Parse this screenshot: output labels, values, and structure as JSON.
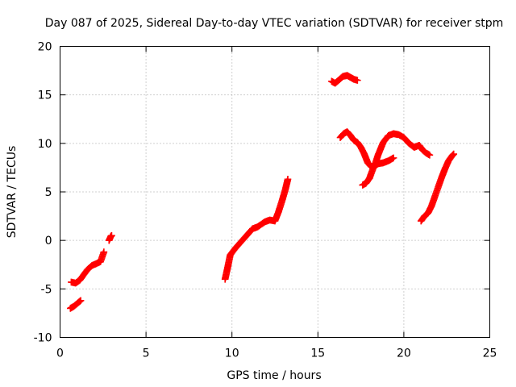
{
  "chart_data": {
    "type": "scatter",
    "title": "Day 087 of 2025, Sidereal Day-to-day VTEC variation (SDTVAR) for receiver stpm",
    "xlabel": "GPS time / hours",
    "ylabel": "SDTVAR / TECUs",
    "xlim": [
      0,
      25
    ],
    "ylim": [
      -10,
      20
    ],
    "xticks": [
      0,
      5,
      10,
      15,
      20,
      25
    ],
    "yticks": [
      -10,
      -5,
      0,
      5,
      10,
      15,
      20
    ],
    "grid": true,
    "marker": "+",
    "color": "#ff0000",
    "series": [
      {
        "name": "seg-1",
        "x": [
          0.65,
          0.9,
          1.15,
          1.35,
          1.6,
          1.85,
          2.1,
          2.35,
          2.55
        ],
        "y": [
          -4.3,
          -4.4,
          -4.1,
          -3.6,
          -3.0,
          -2.6,
          -2.4,
          -2.2,
          -1.2
        ]
      },
      {
        "name": "seg-2",
        "x": [
          0.6,
          0.8,
          1.0,
          1.2
        ],
        "y": [
          -7.0,
          -6.8,
          -6.5,
          -6.2
        ]
      },
      {
        "name": "seg-3",
        "x": [
          2.85,
          2.95,
          3.0
        ],
        "y": [
          0.0,
          0.4,
          0.5
        ]
      },
      {
        "name": "seg-4",
        "x": [
          9.6,
          9.75,
          9.9,
          10.2,
          10.5,
          10.9,
          11.2,
          11.5,
          11.9,
          12.2,
          12.5,
          12.7,
          12.9,
          13.1,
          13.25
        ],
        "y": [
          -4.0,
          -2.8,
          -1.5,
          -0.8,
          -0.2,
          0.6,
          1.2,
          1.4,
          1.9,
          2.1,
          2.0,
          2.9,
          4.0,
          5.2,
          6.3
        ]
      },
      {
        "name": "seg-5",
        "x": [
          15.8,
          16.0,
          16.2,
          16.45,
          16.7,
          16.9,
          17.1,
          17.3
        ],
        "y": [
          16.4,
          16.2,
          16.5,
          16.9,
          17.0,
          16.8,
          16.6,
          16.5
        ]
      },
      {
        "name": "seg-6",
        "x": [
          16.3,
          16.5,
          16.7,
          16.9,
          17.1,
          17.3,
          17.5,
          17.7,
          17.9,
          18.1,
          18.3,
          18.5,
          18.8,
          19.1,
          19.4,
          19.7,
          20.0,
          20.3,
          20.6,
          20.9,
          21.1,
          21.3,
          21.5
        ],
        "y": [
          10.6,
          11.0,
          11.2,
          10.8,
          10.3,
          10.1,
          9.6,
          8.9,
          8.0,
          7.6,
          7.7,
          8.8,
          10.1,
          10.8,
          11.0,
          10.9,
          10.6,
          10.0,
          9.6,
          9.8,
          9.3,
          9.0,
          8.8
        ]
      },
      {
        "name": "seg-7",
        "x": [
          17.6,
          17.8,
          18.0,
          18.25,
          18.5,
          18.8,
          19.1,
          19.4
        ],
        "y": [
          5.7,
          5.9,
          6.4,
          7.6,
          7.9,
          8.0,
          8.2,
          8.5
        ]
      },
      {
        "name": "seg-8",
        "x": [
          21.0,
          21.2,
          21.4,
          21.6,
          21.8,
          22.0,
          22.2,
          22.4,
          22.6,
          22.8,
          22.9
        ],
        "y": [
          2.0,
          2.5,
          2.8,
          3.5,
          4.5,
          5.5,
          6.5,
          7.4,
          8.2,
          8.7,
          8.9
        ]
      }
    ]
  }
}
